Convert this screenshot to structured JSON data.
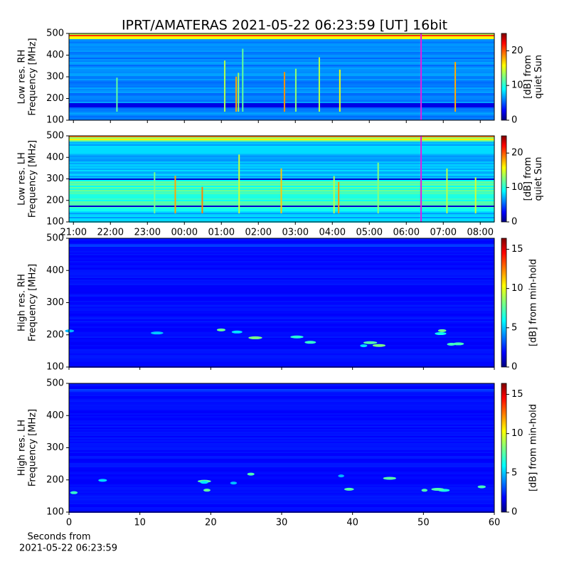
{
  "chart_data": [
    {
      "type": "spectrogram",
      "title": "IPRT/AMATERAS 2021-05-22 06:23:59 [UT]   16bit",
      "ylabel": [
        "Low res. RH",
        "Frequency [MHz]"
      ],
      "ylim": [
        100,
        500
      ],
      "yticks": [
        100,
        200,
        300,
        400,
        500
      ],
      "xlim": [
        -0.12,
        11.38
      ],
      "xticks": [
        0,
        1,
        2,
        3,
        4,
        5,
        6,
        7,
        8,
        9,
        10,
        11
      ],
      "clabel": [
        "[dB] from",
        "quiet Sun"
      ],
      "clim": [
        0,
        25
      ],
      "cticks": [
        0,
        10,
        20
      ],
      "marker_x": 9.4,
      "marker_color": "#e020e0"
    },
    {
      "type": "spectrogram",
      "ylabel": [
        "Low res. LH",
        "Frequency [MHz]"
      ],
      "ylim": [
        100,
        500
      ],
      "yticks": [
        100,
        200,
        300,
        400,
        500
      ],
      "xlim": [
        -0.12,
        11.38
      ],
      "xticks": [
        {
          "value": 0,
          "label": "21:00"
        },
        {
          "value": 1,
          "label": "22:00"
        },
        {
          "value": 2,
          "label": "23:00"
        },
        {
          "value": 3,
          "label": "00:00"
        },
        {
          "value": 4,
          "label": "01:00"
        },
        {
          "value": 5,
          "label": "02:00"
        },
        {
          "value": 6,
          "label": "03:00"
        },
        {
          "value": 7,
          "label": "04:00"
        },
        {
          "value": 8,
          "label": "05:00"
        },
        {
          "value": 9,
          "label": "06:00"
        },
        {
          "value": 10,
          "label": "07:00"
        },
        {
          "value": 11,
          "label": "08:00"
        }
      ],
      "clabel": [
        "[dB] from",
        "quiet Sun"
      ],
      "clim": [
        0,
        25
      ],
      "cticks": [
        0,
        10,
        20
      ],
      "marker_x": 9.4,
      "marker_color": "#e020e0"
    },
    {
      "type": "spectrogram",
      "ylabel": [
        "High res. RH",
        "Frequency [MHz]"
      ],
      "ylim": [
        100,
        500
      ],
      "yticks": [
        100,
        200,
        300,
        400,
        500
      ],
      "xlim": [
        0,
        60
      ],
      "xticks": [
        0,
        10,
        20,
        30,
        40,
        50,
        60
      ],
      "clabel": [
        "[dB] from min-hold"
      ],
      "clim": [
        0,
        16.4
      ],
      "cticks": [
        0,
        5,
        10,
        15
      ]
    },
    {
      "type": "spectrogram",
      "ylabel": [
        "High res. LH",
        "Frequency [MHz]"
      ],
      "ylim": [
        100,
        500
      ],
      "yticks": [
        100,
        200,
        300,
        400,
        500
      ],
      "xlim": [
        0,
        60
      ],
      "xticks": [
        {
          "value": 0,
          "label": "0"
        },
        {
          "value": 10,
          "label": "10"
        },
        {
          "value": 20,
          "label": "20"
        },
        {
          "value": 30,
          "label": "30"
        },
        {
          "value": 40,
          "label": "40"
        },
        {
          "value": 50,
          "label": "50"
        },
        {
          "value": 60,
          "label": "60"
        }
      ],
      "xlabel": [
        "Seconds from",
        "2021-05-22 06:23:59"
      ],
      "clabel": [
        "[dB] from min-hold"
      ],
      "clim": [
        0,
        16.4
      ],
      "cticks": [
        0,
        5,
        10,
        15
      ]
    }
  ]
}
